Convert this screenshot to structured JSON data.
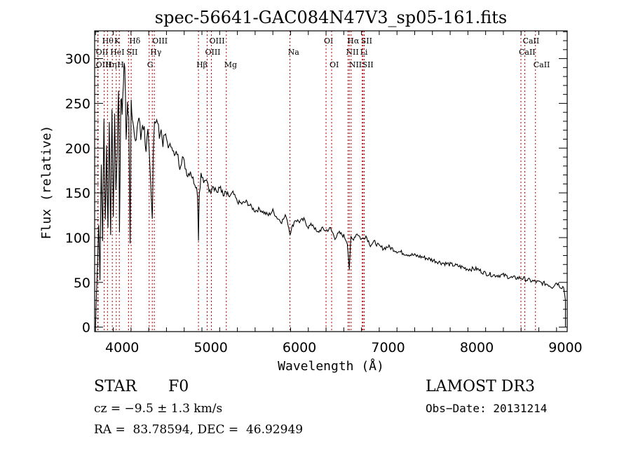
{
  "chart_data": {
    "type": "line",
    "title": "spec-56641-GAC084N47V3_sp05-161.fits",
    "xlabel": "Wavelength (Å)",
    "ylabel": "Flux (relative)",
    "xlim": [
      3690,
      9020
    ],
    "ylim": [
      -5,
      331
    ],
    "xticks": [
      4000,
      5000,
      6000,
      7000,
      8000,
      9000
    ],
    "xtick_labels": [
      "4000",
      "5000",
      "6000",
      "7000",
      "8000",
      "9000"
    ],
    "yticks": [
      0,
      50,
      100,
      150,
      200,
      250,
      300
    ],
    "ytick_labels": [
      "0",
      "50",
      "100",
      "150",
      "200",
      "250",
      "300"
    ],
    "grid": false,
    "line_color": "#000000",
    "marker_color": "#aa0000",
    "spectrum": {
      "x": [
        3700,
        3720,
        3735,
        3750,
        3765,
        3780,
        3795,
        3810,
        3825,
        3840,
        3855,
        3870,
        3885,
        3900,
        3915,
        3930,
        3945,
        3960,
        3970,
        3985,
        4000,
        4015,
        4030,
        4045,
        4060,
        4075,
        4090,
        4102,
        4115,
        4130,
        4150,
        4170,
        4190,
        4210,
        4230,
        4250,
        4270,
        4290,
        4305,
        4320,
        4340,
        4350,
        4365,
        4380,
        4400,
        4420,
        4440,
        4460,
        4480,
        4500,
        4530,
        4560,
        4590,
        4620,
        4650,
        4680,
        4710,
        4740,
        4770,
        4800,
        4830,
        4850,
        4861,
        4870,
        4890,
        4910,
        4930,
        4960,
        4990,
        5020,
        5050,
        5080,
        5110,
        5140,
        5170,
        5200,
        5250,
        5300,
        5350,
        5400,
        5450,
        5500,
        5550,
        5600,
        5650,
        5700,
        5750,
        5800,
        5850,
        5893,
        5950,
        6000,
        6050,
        6100,
        6150,
        6200,
        6250,
        6300,
        6350,
        6400,
        6450,
        6500,
        6540,
        6563,
        6580,
        6600,
        6650,
        6700,
        6750,
        6800,
        6850,
        6900,
        6950,
        7000,
        7100,
        7200,
        7300,
        7400,
        7500,
        7600,
        7700,
        7800,
        7900,
        8000,
        8100,
        8200,
        8300,
        8400,
        8500,
        8600,
        8700,
        8800,
        8850,
        8900,
        8950,
        8980,
        9000
      ],
      "y": [
        0,
        70,
        115,
        60,
        180,
        100,
        230,
        120,
        200,
        110,
        235,
        95,
        250,
        115,
        240,
        150,
        200,
        265,
        105,
        260,
        240,
        280,
        295,
        210,
        250,
        230,
        100,
        255,
        240,
        220,
        200,
        225,
        235,
        210,
        230,
        220,
        200,
        215,
        190,
        160,
        120,
        195,
        235,
        225,
        230,
        215,
        220,
        205,
        215,
        210,
        200,
        205,
        190,
        195,
        180,
        190,
        180,
        170,
        175,
        165,
        160,
        150,
        100,
        150,
        170,
        165,
        160,
        165,
        150,
        160,
        155,
        150,
        158,
        145,
        150,
        145,
        150,
        140,
        138,
        140,
        135,
        130,
        132,
        128,
        125,
        130,
        122,
        118,
        125,
        105,
        120,
        118,
        120,
        112,
        115,
        105,
        110,
        108,
        110,
        100,
        105,
        102,
        95,
        65,
        100,
        98,
        105,
        98,
        102,
        92,
        95,
        90,
        88,
        90,
        85,
        82,
        80,
        78,
        75,
        72,
        70,
        68,
        65,
        65,
        60,
        58,
        58,
        55,
        55,
        52,
        50,
        48,
        45,
        50,
        45,
        45,
        30
      ]
    },
    "line_markers": [
      {
        "label": "Hθ",
        "wavelength": 3798,
        "row": 1
      },
      {
        "label": "K",
        "wavelength": 3934,
        "row": 1
      },
      {
        "label": "Hδ",
        "wavelength": 4102,
        "row": 1
      },
      {
        "label": "OIII",
        "wavelength": 4363,
        "row": 1
      },
      {
        "label": "OIII",
        "wavelength": 5007,
        "row": 1
      },
      {
        "label": "OI",
        "wavelength": 6300,
        "row": 1
      },
      {
        "label": "Hα",
        "wavelength": 6563,
        "row": 1
      },
      {
        "label": "SII",
        "wavelength": 6717,
        "row": 1
      },
      {
        "label": "CaII",
        "wavelength": 8542,
        "row": 1
      },
      {
        "label": "OII",
        "wavelength": 3727,
        "row": 2
      },
      {
        "label": "HeI",
        "wavelength": 3889,
        "row": 2
      },
      {
        "label": "SII",
        "wavelength": 4072,
        "row": 2
      },
      {
        "label": "Hγ",
        "wavelength": 4340,
        "row": 2
      },
      {
        "label": "OIII",
        "wavelength": 4959,
        "row": 2
      },
      {
        "label": "Na",
        "wavelength": 5893,
        "row": 2
      },
      {
        "label": "NII",
        "wavelength": 6548,
        "row": 2
      },
      {
        "label": "Li",
        "wavelength": 6708,
        "row": 2
      },
      {
        "label": "CaII",
        "wavelength": 8498,
        "row": 2
      },
      {
        "label": "OIII",
        "wavelength": 3727,
        "row": 3
      },
      {
        "label": "Hη",
        "wavelength": 3835,
        "row": 3
      },
      {
        "label": "H",
        "wavelength": 3968,
        "row": 3
      },
      {
        "label": "G",
        "wavelength": 4305,
        "row": 3
      },
      {
        "label": "Hβ",
        "wavelength": 4861,
        "row": 3
      },
      {
        "label": "Mg",
        "wavelength": 5175,
        "row": 3
      },
      {
        "label": "OI",
        "wavelength": 6363,
        "row": 3
      },
      {
        "label": "NII",
        "wavelength": 6583,
        "row": 3
      },
      {
        "label": "SII",
        "wavelength": 6731,
        "row": 3
      },
      {
        "label": "CaII",
        "wavelength": 8662,
        "row": 3
      }
    ]
  },
  "footer": {
    "object_class": "STAR",
    "subclass": "F0",
    "redshift": "cz = −9.5 ± 1.3 km/s",
    "coords": "RA =  83.78594, DEC =  46.92949",
    "survey": "LAMOST DR3",
    "obs_date": "Obs−Date: 20131214"
  }
}
